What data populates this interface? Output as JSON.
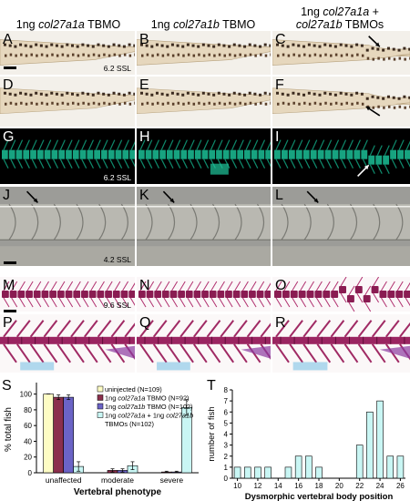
{
  "columns": [
    {
      "pre": "1ng ",
      "gene": "col27a1a",
      "post": " TBMO",
      "line2": ""
    },
    {
      "pre": "1ng ",
      "gene": "col27a1b",
      "post": " TBMO",
      "line2": ""
    },
    {
      "pre": "1ng ",
      "gene": "col27a1a",
      "post": " +",
      "line2_gene": "col27a1b",
      "line2": " TBMOs"
    }
  ],
  "rows": [
    {
      "letters": [
        "A",
        "B",
        "C"
      ],
      "stage": "6.2 SSL",
      "style": "brightfield"
    },
    {
      "letters": [
        "D",
        "E",
        "F"
      ],
      "stage": "",
      "style": "brightfield"
    },
    {
      "letters": [
        "G",
        "H",
        "I"
      ],
      "stage": "6.2 SSL",
      "style": "fluorescent"
    },
    {
      "letters": [
        "J",
        "K",
        "L"
      ],
      "stage": "4.2 SSL",
      "style": "dic"
    },
    {
      "letters": [
        "M",
        "N",
        "O"
      ],
      "stage": "9.6 SSL",
      "style": "alizarin"
    },
    {
      "letters": [
        "P",
        "Q",
        "R"
      ],
      "stage": "",
      "style": "alizarin-closeup"
    }
  ],
  "chart_S": {
    "letter": "S",
    "type": "bar",
    "ylabel": "% total fish",
    "xlabel": "Vertebral phenotype",
    "categories": [
      "unaffected",
      "moderate",
      "severe"
    ],
    "yticks": [
      "0",
      "20",
      "40",
      "60",
      "80",
      "100"
    ],
    "ylim": [
      0,
      110
    ],
    "legend": [
      {
        "label": "uninjected (N=109)",
        "color": "#fdfcc4"
      },
      {
        "label_pre": "1ng ",
        "label_gene": "col27a1a",
        "label_post": " TBMO (N=92)",
        "color": "#8b2f4c"
      },
      {
        "label_pre": "1ng ",
        "label_gene": "col27a1b",
        "label_post": " TBMO (N=102)",
        "color": "#6b63c6"
      },
      {
        "label_pre": "1ng ",
        "label_gene": "col27a1a",
        "label_post": " + 1ng ",
        "label_gene2": "col27a1b",
        "line2": "TBMOs (N=102)",
        "color": "#c9f6f4"
      }
    ],
    "series": [
      {
        "values": [
          100,
          0,
          0
        ],
        "errors": [
          0,
          0,
          0
        ]
      },
      {
        "values": [
          96,
          3,
          1
        ],
        "errors": [
          3,
          2,
          1
        ]
      },
      {
        "values": [
          96,
          3,
          1
        ],
        "errors": [
          3,
          2,
          1
        ]
      },
      {
        "values": [
          8,
          9,
          83
        ],
        "errors": [
          6,
          5,
          10
        ]
      }
    ]
  },
  "chart_T": {
    "letter": "T",
    "type": "bar",
    "ylabel": "number of fish",
    "xlabel": "Dysmorphic vertebral body position",
    "x": [
      10,
      11,
      12,
      13,
      14,
      15,
      16,
      17,
      18,
      19,
      20,
      21,
      22,
      23,
      24,
      25,
      26
    ],
    "xticks": [
      "10",
      "12",
      "14",
      "16",
      "18",
      "20",
      "22",
      "24",
      "26"
    ],
    "values": [
      1,
      1,
      1,
      1,
      0,
      1,
      2,
      2,
      1,
      0,
      0,
      0,
      3,
      6,
      7,
      2,
      2
    ],
    "yticks": [
      "0",
      "1",
      "2",
      "3",
      "4",
      "5",
      "6",
      "7",
      "8"
    ],
    "ylim": [
      0,
      8
    ],
    "color": "#c9f6f4"
  }
}
